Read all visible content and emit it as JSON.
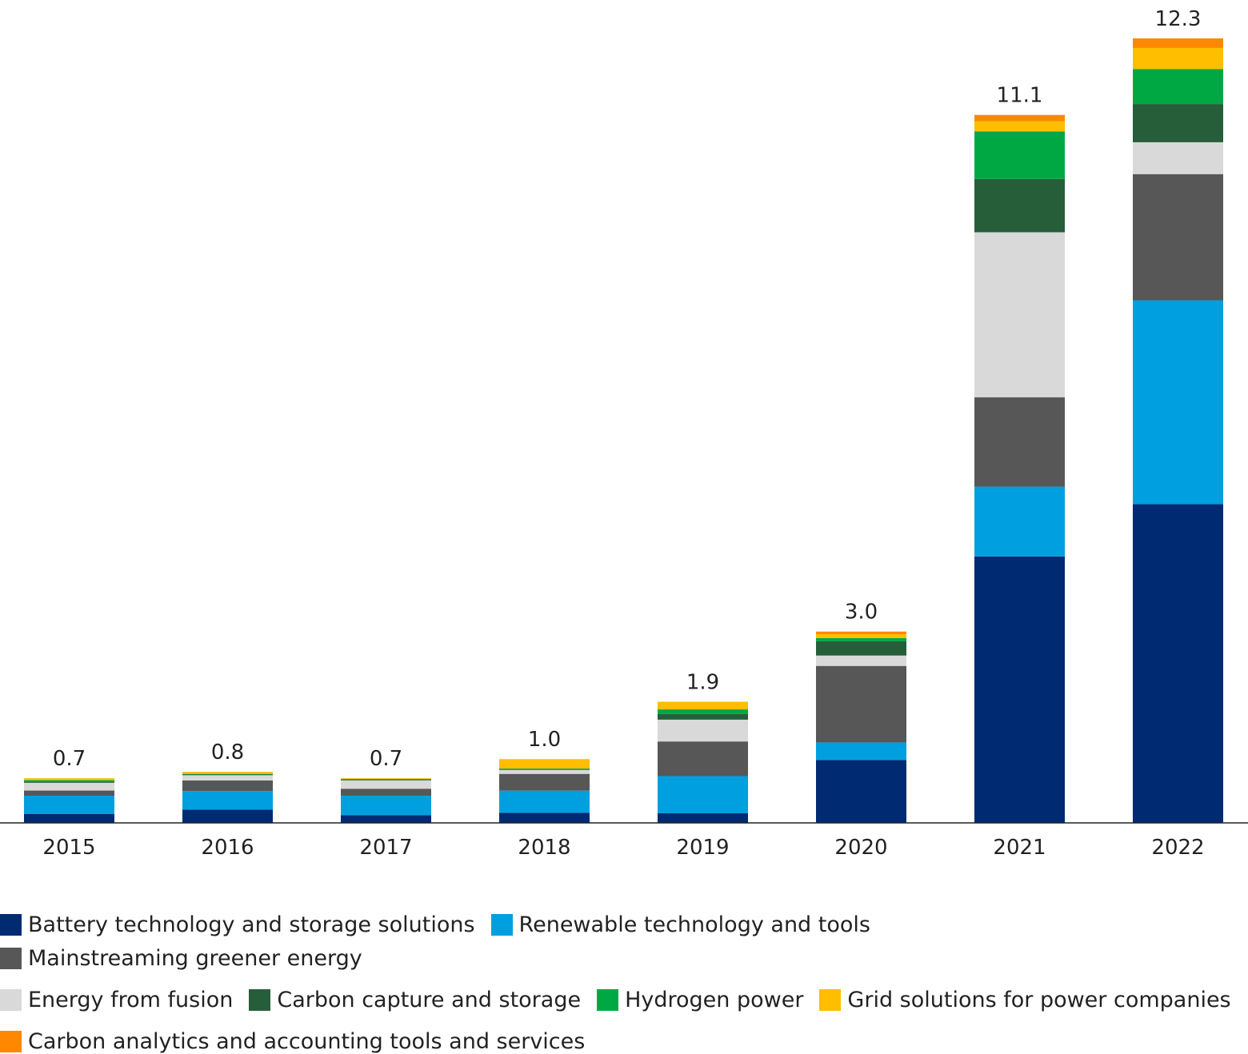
{
  "chart_data": {
    "type": "bar",
    "stacked": true,
    "title": "",
    "xlabel": "",
    "ylabel": "",
    "ylim": [
      0,
      12.3
    ],
    "grid": false,
    "legend_position": "bottom",
    "categories": [
      "2015",
      "2016",
      "2017",
      "2018",
      "2019",
      "2020",
      "2021",
      "2022"
    ],
    "totals": [
      0.7,
      0.8,
      0.7,
      1.0,
      1.9,
      3.0,
      11.1,
      12.3
    ],
    "total_labels": [
      "0.7",
      "0.8",
      "0.7",
      "1.0",
      "1.9",
      "3.0",
      "11.1",
      "12.3"
    ],
    "series": [
      {
        "name": "Battery technology and storage solutions",
        "color": "#002a72",
        "values": [
          0.14,
          0.2,
          0.11,
          0.15,
          0.15,
          0.97,
          4.2,
          5.0
        ]
      },
      {
        "name": "Renewable technology and tools",
        "color": "#009fe0",
        "values": [
          0.28,
          0.28,
          0.28,
          0.33,
          0.58,
          0.27,
          1.1,
          3.2
        ]
      },
      {
        "name": "Mainstreaming greener energy",
        "color": "#575757",
        "values": [
          0.08,
          0.16,
          0.1,
          0.25,
          0.54,
          1.18,
          1.41,
          1.98
        ]
      },
      {
        "name": "Energy from fusion",
        "color": "#d9d9d9",
        "values": [
          0.12,
          0.08,
          0.12,
          0.06,
          0.34,
          0.16,
          2.6,
          0.5
        ]
      },
      {
        "name": "Carbon capture and storage",
        "color": "#265e3a",
        "values": [
          0.02,
          0.01,
          0.01,
          0.01,
          0.09,
          0.22,
          0.84,
          0.6
        ]
      },
      {
        "name": "Hydrogen power",
        "color": "#00a843",
        "values": [
          0.02,
          0.01,
          0.01,
          0.01,
          0.07,
          0.05,
          0.75,
          0.55
        ]
      },
      {
        "name": "Grid solutions for power companies",
        "color": "#ffbe00",
        "values": [
          0.03,
          0.03,
          0.01,
          0.14,
          0.12,
          0.06,
          0.16,
          0.33
        ]
      },
      {
        "name": "Carbon analytics and accounting tools and services",
        "color": "#ff8800",
        "values": [
          0.0,
          0.0,
          0.0,
          0.0,
          0.0,
          0.04,
          0.1,
          0.15
        ]
      }
    ]
  }
}
